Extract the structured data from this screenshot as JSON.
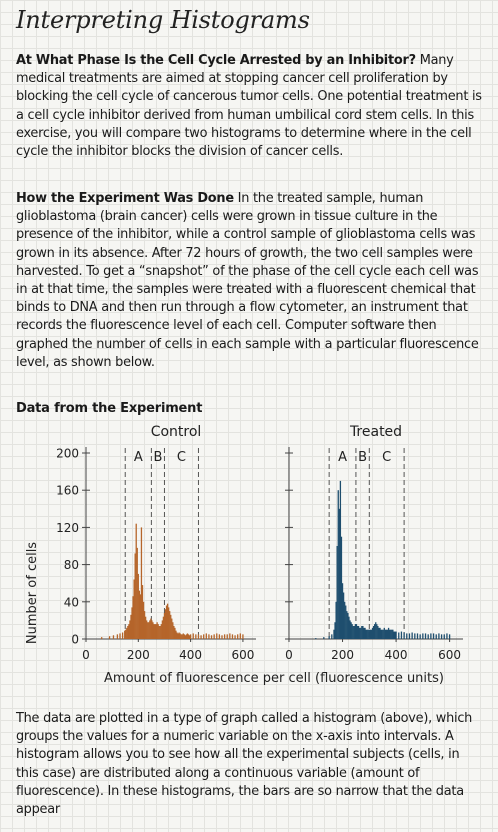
{
  "title": "Interpreting Histograms",
  "intro": {
    "heading": "At What Phase Is the Cell Cycle Arrested by an Inhibitor?",
    "text": " Many medical treatments are aimed at stopping cancer cell proliferation by blocking the cell cycle of cancerous tumor cells. One potential treatment is a cell cycle inhibitor derived from human umbilical cord stem cells. In this exercise, you will compare two histograms to determine where in the cell cycle the inhibitor blocks the division of cancer cells."
  },
  "method": {
    "heading": "How the Experiment Was Done",
    "text": " In the treated sample, human glioblastoma (brain cancer) cells were grown in tissue culture in the presence of the inhibitor, while a control sample of glioblastoma cells was grown in its absence. After 72 hours of growth, the two cell samples were harvested. To get a “snapshot” of the phase of the cell cycle each cell was in at that time, the samples were treated with a fluorescent chemical that binds to DNA and then run through a flow cytometer, an instrument that records the fluorescence level of each cell. Computer software then graphed the number of cells in each sample with a particular fluorescence level, as shown below."
  },
  "data_heading": "Data from the Experiment",
  "outro": {
    "text": "The data are plotted in a type of graph called a histogram (above), which groups the values for a numeric variable on the x-axis into intervals. A histogram allows you to see how all the experimental subjects (cells, in this case) are distributed along a continuous variable (amount of fluorescence). In these histograms, the bars are so narrow that the data appear"
  },
  "chart_data": [
    {
      "type": "bar",
      "title": "Control",
      "ylabel": "Number of cells",
      "xlabel": "Amount of fluorescence per cell (fluorescence units)",
      "xlim": [
        0,
        650
      ],
      "ylim": [
        0,
        200
      ],
      "yticks": [
        0,
        40,
        80,
        120,
        160,
        200
      ],
      "xticks": [
        0,
        200,
        400,
        600
      ],
      "phase_labels": [
        "A",
        "B",
        "C"
      ],
      "phase_boundaries": [
        150,
        250,
        300,
        430
      ],
      "color": "#b5652a",
      "x": [
        60,
        90,
        105,
        120,
        130,
        140,
        148,
        152,
        156,
        160,
        164,
        168,
        172,
        176,
        180,
        184,
        188,
        192,
        196,
        200,
        204,
        208,
        212,
        216,
        220,
        224,
        228,
        232,
        236,
        240,
        244,
        248,
        252,
        256,
        260,
        264,
        268,
        272,
        276,
        280,
        284,
        288,
        292,
        296,
        300,
        304,
        308,
        312,
        316,
        320,
        324,
        328,
        332,
        336,
        340,
        344,
        348,
        352,
        356,
        360,
        364,
        368,
        372,
        376,
        380,
        384,
        388,
        392,
        396,
        400,
        410,
        420,
        430,
        440,
        450,
        460,
        470,
        480,
        490,
        500,
        510,
        520,
        530,
        540,
        550,
        560,
        570,
        580,
        590,
        600
      ],
      "values": [
        2,
        3,
        4,
        5,
        6,
        7,
        9,
        10,
        12,
        14,
        16,
        20,
        26,
        34,
        46,
        64,
        92,
        124,
        98,
        70,
        52,
        48,
        120,
        58,
        40,
        30,
        24,
        20,
        18,
        18,
        20,
        22,
        20,
        18,
        16,
        16,
        16,
        18,
        16,
        14,
        14,
        16,
        20,
        24,
        28,
        32,
        36,
        38,
        34,
        30,
        26,
        22,
        18,
        14,
        12,
        9,
        7,
        6,
        7,
        6,
        5,
        5,
        6,
        5,
        4,
        5,
        6,
        5,
        4,
        5,
        6,
        5,
        5,
        4,
        5,
        6,
        5,
        4,
        5,
        6,
        5,
        4,
        5,
        5,
        6,
        5,
        4,
        5,
        6,
        5
      ]
    },
    {
      "type": "bar",
      "title": "Treated",
      "ylabel": "Number of cells",
      "xlabel": "Amount of fluorescence per cell (fluorescence units)",
      "xlim": [
        0,
        650
      ],
      "ylim": [
        0,
        200
      ],
      "yticks": [
        0,
        40,
        80,
        120,
        160,
        200
      ],
      "xticks": [
        0,
        200,
        400,
        600
      ],
      "phase_labels": [
        "A",
        "B",
        "C"
      ],
      "phase_boundaries": [
        150,
        250,
        300,
        430
      ],
      "color": "#1e4e6e",
      "x": [
        100,
        130,
        150,
        160,
        168,
        172,
        176,
        180,
        184,
        188,
        192,
        196,
        200,
        204,
        208,
        212,
        216,
        220,
        224,
        228,
        232,
        236,
        240,
        244,
        248,
        252,
        256,
        260,
        264,
        268,
        272,
        276,
        280,
        284,
        288,
        292,
        296,
        300,
        304,
        308,
        312,
        316,
        320,
        324,
        328,
        332,
        336,
        340,
        344,
        348,
        352,
        356,
        360,
        364,
        368,
        372,
        376,
        380,
        384,
        388,
        392,
        396,
        400,
        410,
        420,
        430,
        440,
        450,
        460,
        470,
        480,
        490,
        500,
        510,
        520,
        530,
        540,
        550,
        560,
        570,
        580,
        590,
        600
      ],
      "values": [
        1,
        2,
        3,
        5,
        10,
        18,
        40,
        100,
        160,
        140,
        170,
        110,
        60,
        50,
        40,
        36,
        30,
        28,
        24,
        20,
        18,
        16,
        14,
        14,
        16,
        16,
        14,
        14,
        12,
        12,
        14,
        14,
        12,
        12,
        10,
        10,
        10,
        10,
        10,
        10,
        12,
        14,
        16,
        18,
        16,
        14,
        12,
        12,
        10,
        10,
        10,
        12,
        10,
        10,
        10,
        12,
        10,
        10,
        10,
        10,
        8,
        8,
        8,
        7,
        8,
        7,
        6,
        6,
        7,
        6,
        6,
        5,
        6,
        6,
        5,
        6,
        6,
        5,
        6,
        5,
        5,
        6,
        5
      ]
    }
  ]
}
